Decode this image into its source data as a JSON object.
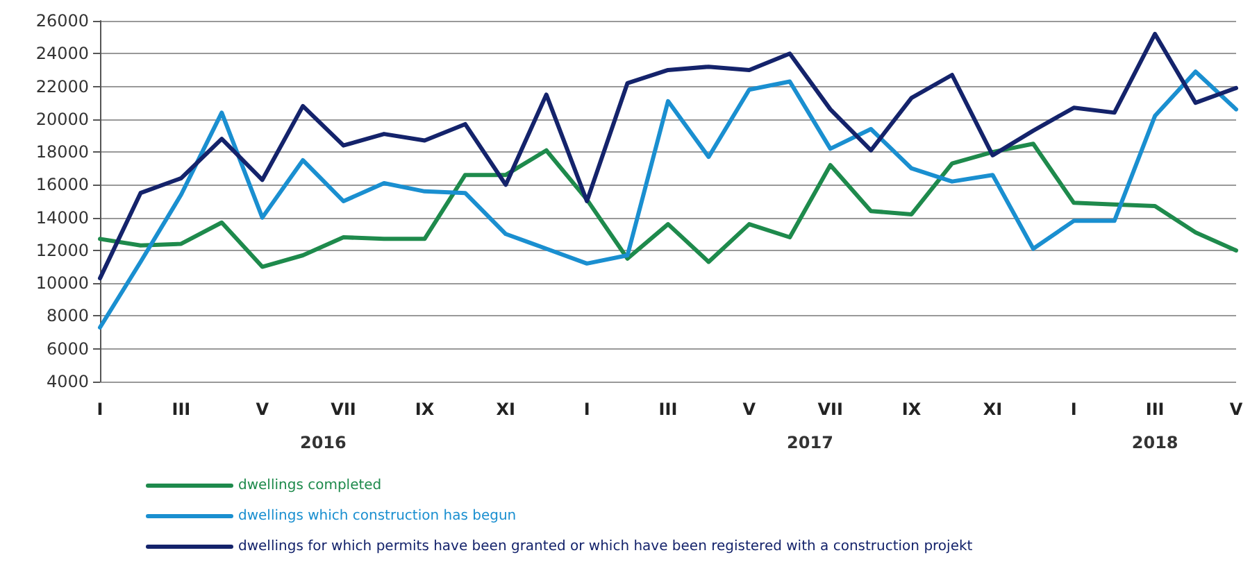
{
  "chart_data": {
    "type": "line",
    "categories": [
      "I",
      null,
      "III",
      null,
      "V",
      null,
      "VII",
      null,
      "IX",
      null,
      "XI",
      null,
      "I",
      null,
      "III",
      null,
      "V",
      null,
      "VII",
      null,
      "IX",
      null,
      "XI",
      null,
      "I",
      null,
      "III",
      null,
      "V"
    ],
    "series": [
      {
        "name": "dwellings completed",
        "color": "#1e8a4c",
        "values": [
          12700,
          12300,
          12400,
          13700,
          11000,
          11700,
          12800,
          12700,
          12700,
          16600,
          16600,
          18100,
          15100,
          11500,
          13600,
          11300,
          13600,
          12800,
          17200,
          14400,
          14200,
          17300,
          18000,
          18500,
          14900,
          14800,
          14700,
          13100,
          12000
        ]
      },
      {
        "name": "dwellings which construction has begun",
        "color": "#1a8fd0",
        "values": [
          7300,
          11300,
          15400,
          20400,
          14000,
          17500,
          15000,
          16100,
          15600,
          15500,
          13000,
          12100,
          11200,
          11700,
          21100,
          17700,
          21800,
          22300,
          18200,
          19400,
          17000,
          16200,
          16600,
          12100,
          13800,
          13800,
          20200,
          22900,
          20600
        ]
      },
      {
        "name": "dwellings for which permits have been granted or which have been registered with a construction projekt",
        "color": "#14236b",
        "values": [
          10300,
          15500,
          16400,
          18800,
          16300,
          20800,
          18400,
          19100,
          18700,
          19700,
          16000,
          21500,
          15000,
          22200,
          23000,
          23200,
          23000,
          24000,
          20600,
          18100,
          21300,
          22700,
          17800,
          19300,
          20700,
          20400,
          25200,
          21000,
          21900
        ]
      }
    ],
    "ylim": [
      4000,
      26000
    ],
    "yticks": [
      4000,
      6000,
      8000,
      10000,
      12000,
      14000,
      16000,
      18000,
      20000,
      22000,
      24000,
      26000
    ],
    "grid": "y",
    "legend": "bottom left",
    "marker": "none",
    "line_style": "solid",
    "annotations": [
      "2016",
      "2017",
      "2018"
    ]
  }
}
